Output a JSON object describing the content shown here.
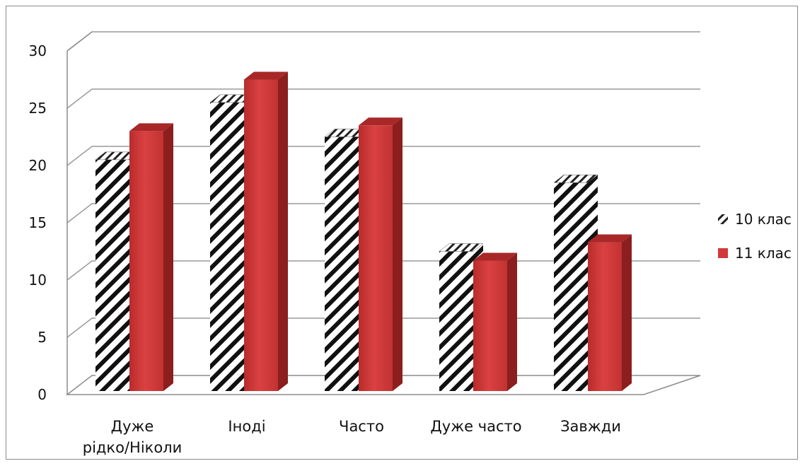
{
  "chart_data": {
    "type": "bar",
    "title": "",
    "xlabel": "",
    "ylabel": "",
    "ylim": [
      0,
      30
    ],
    "yticks": [
      0,
      5,
      10,
      15,
      20,
      25,
      30
    ],
    "categories": [
      "Дуже|рідко/Ніколи",
      "Іноді",
      "Часто",
      "Дуже часто",
      "Завжди"
    ],
    "series": [
      {
        "name": "10 клас",
        "values": [
          20.5,
          25.5,
          22.5,
          12.5,
          18.5
        ],
        "fill": "hatch",
        "color": "#111111"
      },
      {
        "name": "11 клас",
        "values": [
          23.0,
          27.5,
          23.5,
          11.7,
          13.3
        ],
        "fill": "solid",
        "color": "#d13a3a"
      }
    ],
    "grid": true,
    "legend": "right",
    "style": "3d-columns"
  }
}
